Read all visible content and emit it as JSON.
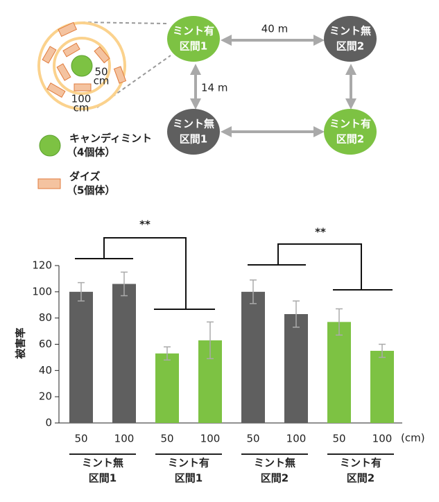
{
  "diagram": {
    "nodes": [
      [
        "ミント有",
        "区間1"
      ],
      [
        "ミント無",
        "区間2"
      ],
      [
        "ミント無",
        "区間1"
      ],
      [
        "ミント有",
        "区間2"
      ]
    ],
    "distances": [
      "40 m",
      "14 m"
    ],
    "rings": [
      [
        "50",
        "cm"
      ],
      [
        "100",
        "cm"
      ]
    ],
    "legend": [
      [
        "キャンディミント",
        "（4個体）"
      ],
      [
        "ダイズ",
        "（5個体）"
      ]
    ]
  },
  "chart_data": {
    "type": "bar",
    "y_label": "被害率",
    "x_unit": "(cm)",
    "categories": [
      "50",
      "100",
      "50",
      "100",
      "50",
      "100",
      "50",
      "100"
    ],
    "groups": [
      [
        "ミント無",
        "区間1"
      ],
      [
        "ミント有",
        "区間1"
      ],
      [
        "ミント無",
        "区間2"
      ],
      [
        "ミント有",
        "区間2"
      ]
    ],
    "values": [
      100,
      106,
      53,
      63,
      100,
      83,
      77,
      55
    ],
    "errors": [
      7,
      9,
      5,
      14,
      9,
      10,
      10,
      5
    ],
    "colors": [
      "#5f5f5f",
      "#5f5f5f",
      "#7dc243",
      "#7dc243",
      "#5f5f5f",
      "#5f5f5f",
      "#7dc243",
      "#7dc243"
    ],
    "ylim": [
      0,
      120
    ],
    "yticks": [
      0,
      20,
      40,
      60,
      80,
      100,
      120
    ],
    "significance": [
      "**",
      "**"
    ]
  }
}
